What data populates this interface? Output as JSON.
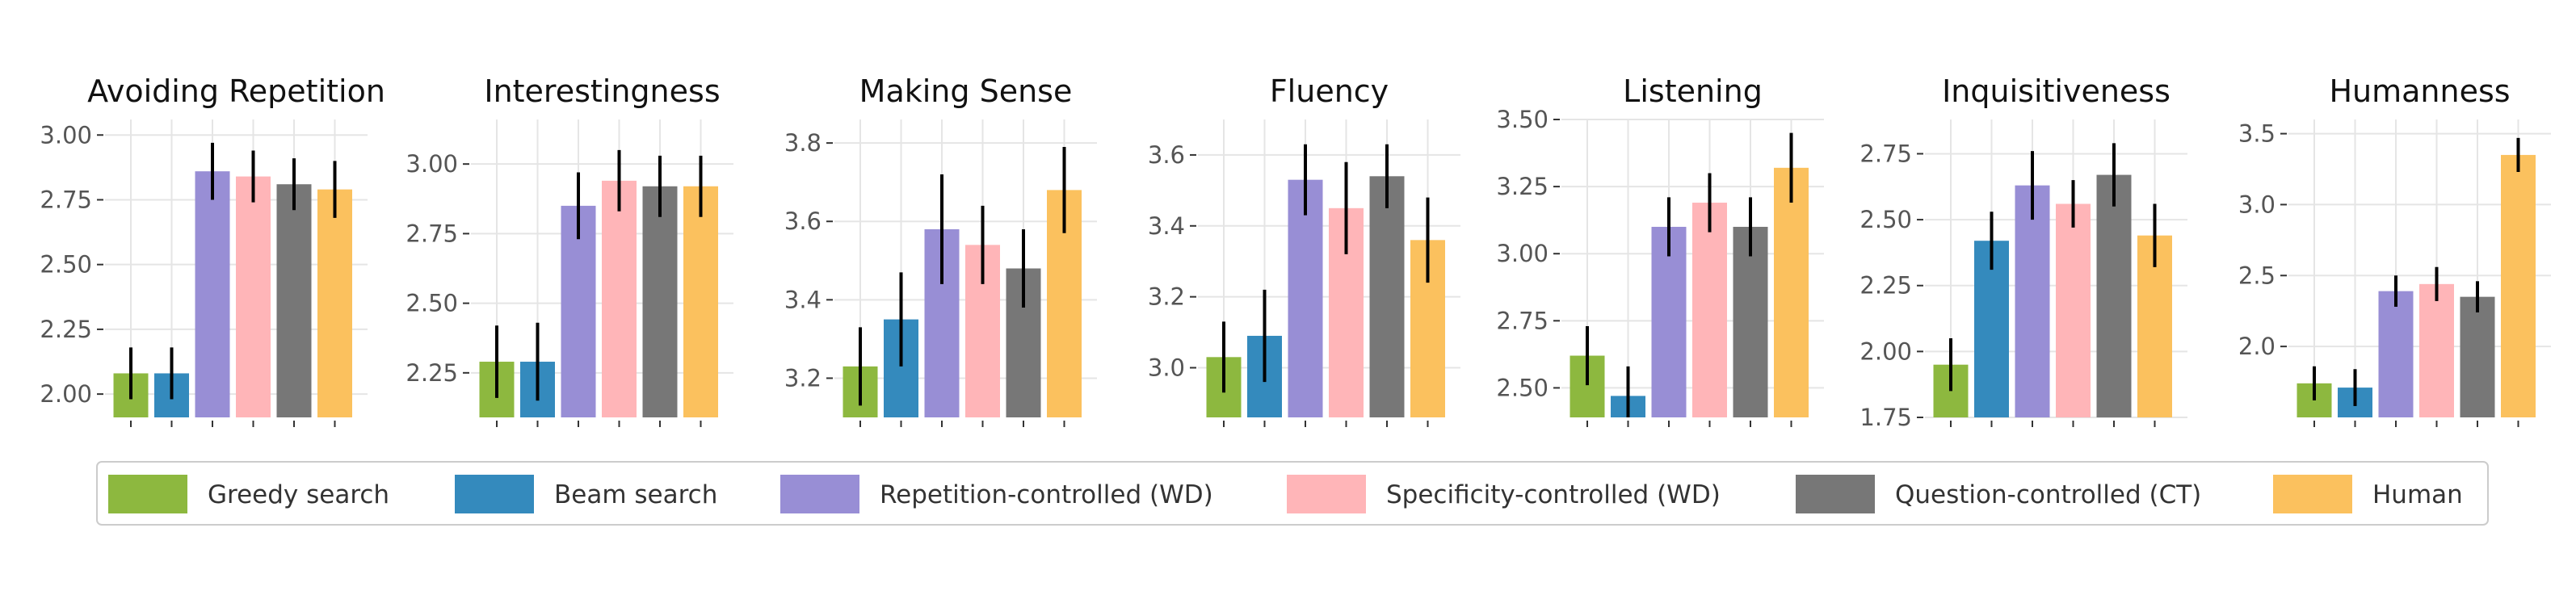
{
  "colors": {
    "greedy": "#8db83f",
    "beam": "#348abd",
    "repetition": "#988ed5",
    "specificity": "#ffb5b8",
    "question": "#777777",
    "human": "#fbc15e",
    "grid": "#e5e5e5",
    "text": "#333333",
    "errorbar": "#000000"
  },
  "legend": {
    "placement": "bottom",
    "items": [
      {
        "label": "Greedy search",
        "color_key": "greedy"
      },
      {
        "label": "Beam search",
        "color_key": "beam"
      },
      {
        "label": "Repetition-controlled (WD)",
        "color_key": "repetition"
      },
      {
        "label": "Specificity-controlled (WD)",
        "color_key": "specificity"
      },
      {
        "label": "Question-controlled (CT)",
        "color_key": "question"
      },
      {
        "label": "Human",
        "color_key": "human"
      }
    ]
  },
  "chart_data": [
    {
      "type": "bar",
      "title": "Avoiding Repetition",
      "categories": [
        "Greedy search",
        "Beam search",
        "Repetition-controlled (WD)",
        "Specificity-controlled (WD)",
        "Question-controlled (CT)",
        "Human"
      ],
      "values": [
        2.08,
        2.08,
        2.86,
        2.84,
        2.81,
        2.79
      ],
      "error": [
        0.1,
        0.1,
        0.11,
        0.1,
        0.1,
        0.11
      ],
      "ylim": [
        1.91,
        3.06
      ],
      "yticks": [
        "2.00",
        "2.25",
        "2.50",
        "2.75",
        "3.00"
      ],
      "grid": true
    },
    {
      "type": "bar",
      "title": "Interestingness",
      "categories": [
        "Greedy search",
        "Beam search",
        "Repetition-controlled (WD)",
        "Specificity-controlled (WD)",
        "Question-controlled (CT)",
        "Human"
      ],
      "values": [
        2.29,
        2.29,
        2.85,
        2.94,
        2.92,
        2.92
      ],
      "error": [
        0.13,
        0.14,
        0.12,
        0.11,
        0.11,
        0.11
      ],
      "ylim": [
        2.09,
        3.16
      ],
      "yticks": [
        "2.25",
        "2.50",
        "2.75",
        "3.00"
      ],
      "grid": true
    },
    {
      "type": "bar",
      "title": "Making Sense",
      "categories": [
        "Greedy search",
        "Beam search",
        "Repetition-controlled (WD)",
        "Specificity-controlled (WD)",
        "Question-controlled (CT)",
        "Human"
      ],
      "values": [
        3.23,
        3.35,
        3.58,
        3.54,
        3.48,
        3.68
      ],
      "error": [
        0.1,
        0.12,
        0.14,
        0.1,
        0.1,
        0.11
      ],
      "ylim": [
        3.1,
        3.86
      ],
      "yticks": [
        "3.2",
        "3.4",
        "3.6",
        "3.8"
      ],
      "grid": true
    },
    {
      "type": "bar",
      "title": "Fluency",
      "categories": [
        "Greedy search",
        "Beam search",
        "Repetition-controlled (WD)",
        "Specificity-controlled (WD)",
        "Question-controlled (CT)",
        "Human"
      ],
      "values": [
        3.03,
        3.09,
        3.53,
        3.45,
        3.54,
        3.36
      ],
      "error": [
        0.1,
        0.13,
        0.1,
        0.13,
        0.09,
        0.12
      ],
      "ylim": [
        2.86,
        3.7
      ],
      "yticks": [
        "3.0",
        "3.2",
        "3.4",
        "3.6"
      ],
      "grid": true
    },
    {
      "type": "bar",
      "title": "Listening",
      "categories": [
        "Greedy search",
        "Beam search",
        "Repetition-controlled (WD)",
        "Specificity-controlled (WD)",
        "Question-controlled (CT)",
        "Human"
      ],
      "values": [
        2.62,
        2.47,
        3.1,
        3.19,
        3.1,
        3.32
      ],
      "error": [
        0.11,
        0.11,
        0.11,
        0.11,
        0.11,
        0.13
      ],
      "ylim": [
        2.39,
        3.5
      ],
      "yticks": [
        "2.50",
        "2.75",
        "3.00",
        "3.25",
        "3.50"
      ],
      "grid": true
    },
    {
      "type": "bar",
      "title": "Inquisitiveness",
      "categories": [
        "Greedy search",
        "Beam search",
        "Repetition-controlled (WD)",
        "Specificity-controlled (WD)",
        "Question-controlled (CT)",
        "Human"
      ],
      "values": [
        1.95,
        2.42,
        2.63,
        2.56,
        2.67,
        2.44
      ],
      "error": [
        0.1,
        0.11,
        0.13,
        0.09,
        0.12,
        0.12
      ],
      "ylim": [
        1.75,
        2.88
      ],
      "yticks": [
        "1.75",
        "2.00",
        "2.25",
        "2.50",
        "2.75"
      ],
      "grid": true
    },
    {
      "type": "bar",
      "title": "Humanness",
      "categories": [
        "Greedy search",
        "Beam search",
        "Repetition-controlled (WD)",
        "Specificity-controlled (WD)",
        "Question-controlled (CT)",
        "Human"
      ],
      "values": [
        1.74,
        1.71,
        2.39,
        2.44,
        2.35,
        3.35
      ],
      "error": [
        0.12,
        0.13,
        0.11,
        0.12,
        0.11,
        0.12
      ],
      "ylim": [
        1.5,
        3.6
      ],
      "yticks": [
        "2.0",
        "2.5",
        "3.0",
        "3.5"
      ],
      "grid": true
    }
  ]
}
